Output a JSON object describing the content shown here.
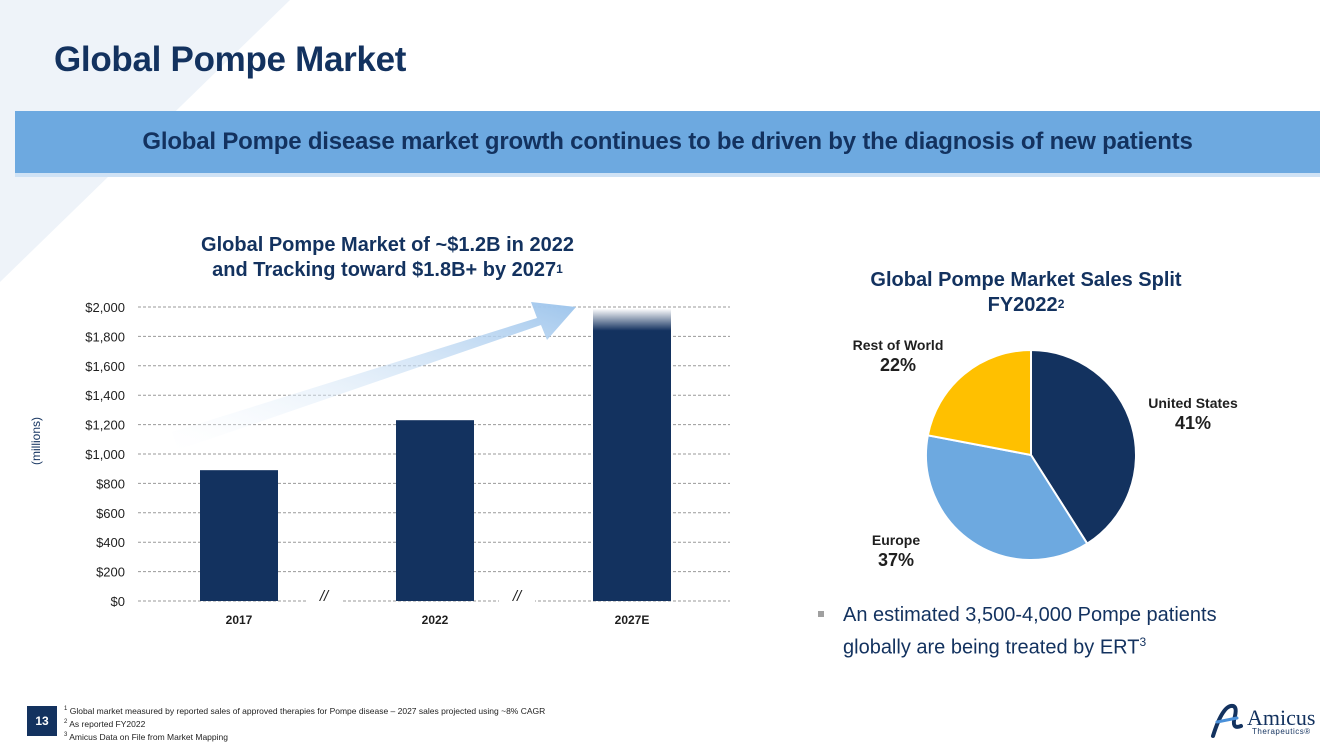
{
  "header": {
    "title": "Global Pompe Market",
    "banner": "Global Pompe disease market growth continues to be driven by the diagnosis of new patients"
  },
  "bar_chart_title": {
    "line1": "Global Pompe Market of ~$1.2B in 2022",
    "line2": "and Tracking toward $1.8B+ by 2027",
    "sup": "1"
  },
  "pie_chart_title": {
    "line1": "Global Pompe Market Sales Split",
    "line2": "FY2022",
    "sup": "2"
  },
  "chart_data": [
    {
      "type": "bar",
      "title": "Global Pompe Market of ~$1.2B in 2022 and Tracking toward $1.8B+ by 2027",
      "categories": [
        "2017",
        "2022",
        "2027E"
      ],
      "values": [
        890,
        1230,
        1900
      ],
      "ylabel": "(millions)",
      "ylim": [
        0,
        2000
      ],
      "yticks": [
        0,
        200,
        400,
        600,
        800,
        1000,
        1200,
        1400,
        1600,
        1800,
        2000
      ],
      "ytick_labels": [
        "$0",
        "$200",
        "$400",
        "$600",
        "$800",
        "$1,000",
        "$1,200",
        "$1,400",
        "$1,600",
        "$1,800",
        "$2,000"
      ],
      "break_marks": [
        "//",
        "//"
      ],
      "grid": true,
      "color": "#13325f"
    },
    {
      "type": "pie",
      "title": "Global Pompe Market Sales Split FY2022",
      "slices": [
        {
          "label": "United States",
          "value": 41,
          "display": "41%",
          "color": "#13325f"
        },
        {
          "label": "Europe",
          "value": 37,
          "display": "37%",
          "color": "#6da9e0"
        },
        {
          "label": "Rest of World",
          "value": 22,
          "display": "22%",
          "color": "#ffc000"
        }
      ]
    }
  ],
  "bullet": {
    "text": "An estimated 3,500-4,000 Pompe patients globally are being treated by ERT",
    "sup": "3"
  },
  "footer": {
    "page_number": "13",
    "footnotes": [
      {
        "num": "1",
        "text": "Global market measured by reported sales of approved therapies for Pompe disease – 2027 sales projected using ~8% CAGR"
      },
      {
        "num": "2",
        "text": "As reported FY2022"
      },
      {
        "num": "3",
        "text": "Amicus Data on File from Market Mapping"
      }
    ],
    "logo_name": "Amicus",
    "logo_sub": "Therapeutics®"
  }
}
